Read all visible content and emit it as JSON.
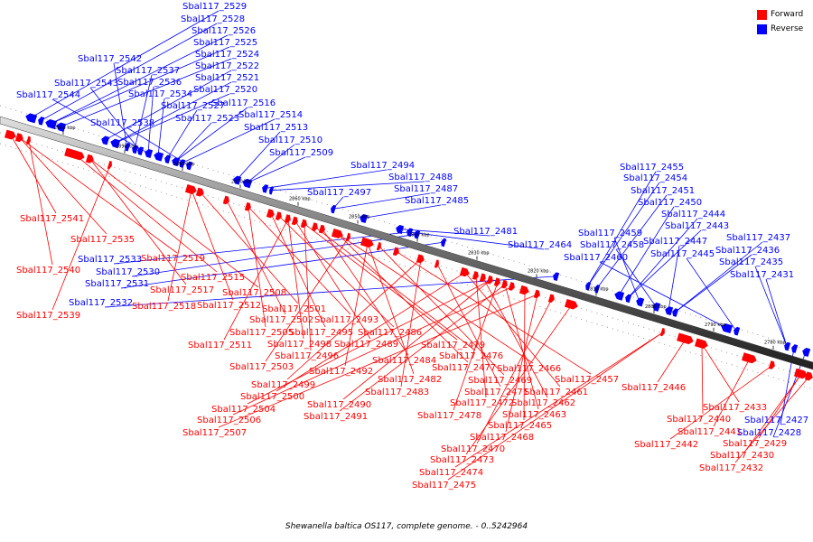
{
  "caption": "Shewanella baltica OS117, complete genome. - 0..5242964",
  "legend": [
    {
      "label": "Forward",
      "color": "#ff0000"
    },
    {
      "label": "Reverse",
      "color": "#0000ff"
    }
  ],
  "ticks": [
    "2900 kbp",
    "2890 kbp",
    "2880 kbp",
    "2870 kbp",
    "2860 kbp",
    "2850 kbp",
    "2840 kbp",
    "2830 kbp",
    "2820 kbp",
    "2810 kbp",
    "2800 kbp",
    "2790 kbp",
    "2780 kbp"
  ],
  "reverse_labels": [
    "Sbal117_2529",
    "Sbal117_2528",
    "Sbal117_2526",
    "Sbal117_2525",
    "Sbal117_2524",
    "Sbal117_2522",
    "Sbal117_2521",
    "Sbal117_2520",
    "Sbal117_2542",
    "Sbal117_2537",
    "Sbal117_2543",
    "Sbal117_2536",
    "Sbal117_2544",
    "Sbal117_2534",
    "Sbal117_2527",
    "Sbal117_2516",
    "Sbal117_2523",
    "Sbal117_2514",
    "Sbal117_2538",
    "Sbal117_2513",
    "Sbal117_2510",
    "Sbal117_2509",
    "Sbal117_2494",
    "Sbal117_2488",
    "Sbal117_2487",
    "Sbal117_2497",
    "Sbal117_2485",
    "Sbal117_2481",
    "Sbal117_2464",
    "Sbal117_2533",
    "Sbal117_2530",
    "Sbal117_2531",
    "Sbal117_2532",
    "Sbal117_2455",
    "Sbal117_2454",
    "Sbal117_2451",
    "Sbal117_2450",
    "Sbal117_2444",
    "Sbal117_2443",
    "Sbal117_2459",
    "Sbal117_2458",
    "Sbal117_2447",
    "Sbal117_2437",
    "Sbal117_2436",
    "Sbal117_2460",
    "Sbal117_2445",
    "Sbal117_2435",
    "Sbal117_2431",
    "Sbal117_2427",
    "Sbal117_2428"
  ],
  "forward_labels": [
    "Sbal117_2541",
    "Sbal117_2535",
    "Sbal117_2519",
    "Sbal117_2540",
    "Sbal117_2515",
    "Sbal117_2517",
    "Sbal117_2508",
    "Sbal117_2539",
    "Sbal117_2518",
    "Sbal117_2512",
    "Sbal117_2501",
    "Sbal117_2502",
    "Sbal117_2493",
    "Sbal117_2505",
    "Sbal117_2495",
    "Sbal117_2486",
    "Sbal117_2511",
    "Sbal117_2498",
    "Sbal117_2489",
    "Sbal117_2479",
    "Sbal117_2496",
    "Sbal117_2476",
    "Sbal117_2484",
    "Sbal117_2477",
    "Sbal117_2466",
    "Sbal117_2503",
    "Sbal117_2492",
    "Sbal117_2482",
    "Sbal117_2469",
    "Sbal117_2457",
    "Sbal117_2499",
    "Sbal117_2483",
    "Sbal117_2471",
    "Sbal117_2461",
    "Sbal117_2500",
    "Sbal117_2472",
    "Sbal117_2462",
    "Sbal117_2490",
    "Sbal117_2504",
    "Sbal117_2478",
    "Sbal117_2463",
    "Sbal117_2491",
    "Sbal117_2506",
    "Sbal117_2465",
    "Sbal117_2507",
    "Sbal117_2468",
    "Sbal117_2470",
    "Sbal117_2473",
    "Sbal117_2474",
    "Sbal117_2475",
    "Sbal117_2446",
    "Sbal117_2433",
    "Sbal117_2440",
    "Sbal117_2441",
    "Sbal117_2442",
    "Sbal117_2429",
    "Sbal117_2430",
    "Sbal117_2432"
  ]
}
